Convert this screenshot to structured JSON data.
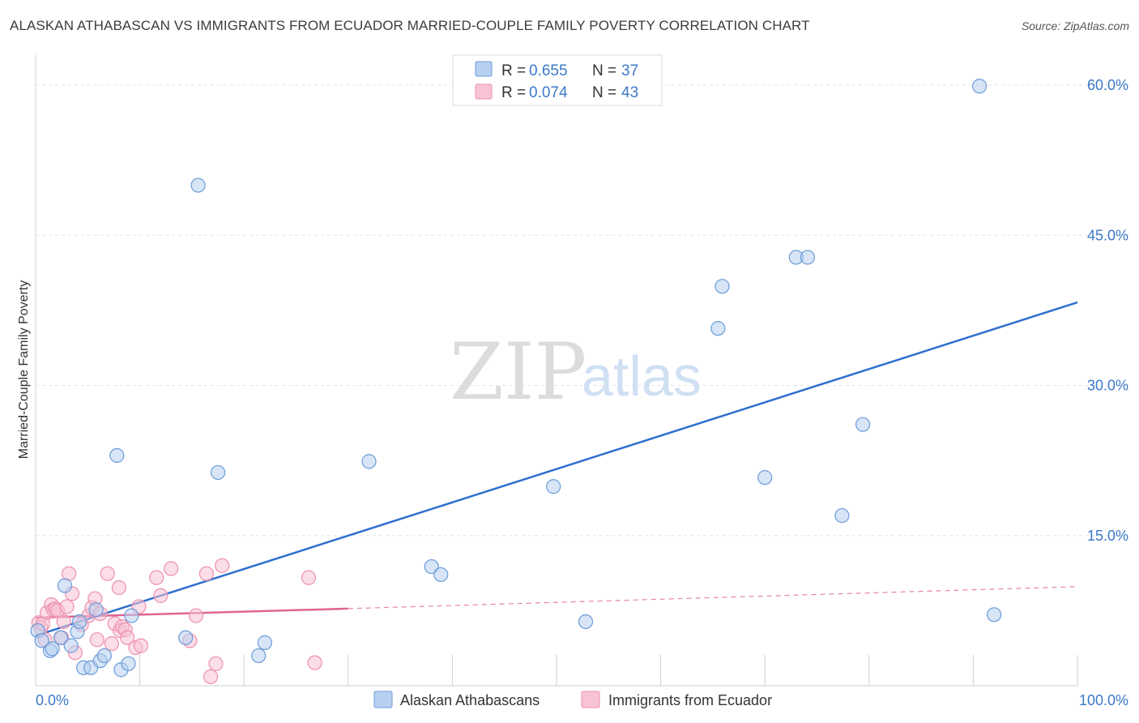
{
  "header": {
    "title": "ALASKAN ATHABASCAN VS IMMIGRANTS FROM ECUADOR MARRIED-COUPLE FAMILY POVERTY CORRELATION CHART",
    "source": "Source: ZipAtlas.com"
  },
  "watermark": {
    "zip": "ZIP",
    "atlas": "atlas"
  },
  "colors": {
    "series_a": "#6b9bd8",
    "series_a_fill": "#b7d0f1",
    "series_a_line": "#2f6fcf",
    "series_b": "#ee8fae",
    "series_b_fill": "#f8c3d3",
    "series_b_line": "#e06592",
    "axis_label": "#3b78c8",
    "grid": "#e3e3e3"
  },
  "legend": {
    "rows": [
      {
        "r_label": "R = ",
        "r_value": "0.655",
        "n_label": "N = ",
        "n_value": "37"
      },
      {
        "r_label": "R = ",
        "r_value": "0.074",
        "n_label": "N = ",
        "n_value": "43"
      }
    ]
  },
  "chart_data": {
    "type": "scatter",
    "title": "ALASKAN ATHABASCAN VS IMMIGRANTS FROM ECUADOR MARRIED-COUPLE FAMILY POVERTY CORRELATION CHART",
    "xlabel": "",
    "ylabel": "Married-Couple Family Poverty",
    "xlim": [
      0,
      100
    ],
    "ylim": [
      0,
      63
    ],
    "x_tick_labels": [
      {
        "value": 0,
        "label": "0.0%"
      },
      {
        "value": 100,
        "label": "100.0%"
      }
    ],
    "y_tick_labels": [
      {
        "value": 15,
        "label": "15.0%"
      },
      {
        "value": 30,
        "label": "30.0%"
      },
      {
        "value": 45,
        "label": "45.0%"
      },
      {
        "value": 60,
        "label": "60.0%"
      }
    ],
    "series": [
      {
        "name": "Alaskan Athabascans",
        "r": 0.655,
        "n": 37,
        "trend": {
          "x0": 0,
          "y0": 5.0,
          "x1": 100,
          "y1": 38.3
        },
        "points": [
          [
            0.2,
            5.5
          ],
          [
            0.6,
            4.5
          ],
          [
            1.4,
            3.5
          ],
          [
            1.6,
            3.7
          ],
          [
            2.4,
            4.8
          ],
          [
            2.8,
            10.0
          ],
          [
            3.4,
            4.0
          ],
          [
            4.0,
            5.4
          ],
          [
            4.2,
            6.4
          ],
          [
            4.6,
            1.8
          ],
          [
            5.3,
            1.8
          ],
          [
            5.8,
            7.6
          ],
          [
            6.2,
            2.5
          ],
          [
            6.6,
            3.0
          ],
          [
            7.8,
            23.0
          ],
          [
            8.2,
            1.6
          ],
          [
            8.9,
            2.2
          ],
          [
            9.2,
            7.0
          ],
          [
            14.4,
            4.8
          ],
          [
            15.6,
            50.0
          ],
          [
            17.5,
            21.3
          ],
          [
            21.4,
            3.0
          ],
          [
            22.0,
            4.3
          ],
          [
            32.0,
            22.4
          ],
          [
            38.0,
            11.9
          ],
          [
            38.9,
            11.1
          ],
          [
            49.7,
            19.9
          ],
          [
            52.8,
            6.4
          ],
          [
            65.9,
            39.9
          ],
          [
            65.5,
            35.7
          ],
          [
            70.0,
            20.8
          ],
          [
            73.0,
            42.8
          ],
          [
            74.1,
            42.8
          ],
          [
            77.4,
            17.0
          ],
          [
            79.4,
            26.1
          ],
          [
            90.6,
            59.9
          ],
          [
            92.0,
            7.1
          ]
        ]
      },
      {
        "name": "Immigrants from Ecuador",
        "r": 0.074,
        "n": 43,
        "trend_solid": {
          "x0": 0,
          "y0": 6.8,
          "x1": 30,
          "y1": 7.7
        },
        "trend_dashed": {
          "x0": 30,
          "y0": 7.7,
          "x1": 100,
          "y1": 9.9
        },
        "points": [
          [
            0.3,
            6.3
          ],
          [
            0.5,
            5.8
          ],
          [
            0.7,
            6.2
          ],
          [
            0.9,
            4.6
          ],
          [
            1.1,
            7.3
          ],
          [
            1.5,
            8.1
          ],
          [
            1.7,
            7.6
          ],
          [
            1.9,
            7.7
          ],
          [
            2.1,
            7.5
          ],
          [
            2.5,
            4.8
          ],
          [
            2.7,
            6.4
          ],
          [
            3.0,
            7.9
          ],
          [
            3.2,
            11.2
          ],
          [
            3.5,
            9.2
          ],
          [
            3.8,
            3.3
          ],
          [
            4.4,
            6.1
          ],
          [
            5.1,
            7.0
          ],
          [
            5.4,
            7.8
          ],
          [
            5.7,
            8.7
          ],
          [
            5.9,
            4.6
          ],
          [
            6.2,
            7.2
          ],
          [
            6.9,
            11.2
          ],
          [
            7.3,
            4.2
          ],
          [
            7.6,
            6.2
          ],
          [
            8.0,
            9.8
          ],
          [
            8.1,
            5.5
          ],
          [
            8.3,
            5.9
          ],
          [
            8.6,
            5.6
          ],
          [
            8.8,
            4.8
          ],
          [
            9.6,
            3.8
          ],
          [
            10.1,
            4.0
          ],
          [
            11.6,
            10.8
          ],
          [
            12.0,
            9.0
          ],
          [
            13.0,
            11.7
          ],
          [
            14.8,
            4.5
          ],
          [
            15.4,
            7.0
          ],
          [
            16.4,
            11.2
          ],
          [
            17.9,
            12.0
          ],
          [
            16.8,
            0.9
          ],
          [
            17.3,
            2.2
          ],
          [
            26.2,
            10.8
          ],
          [
            26.8,
            2.3
          ],
          [
            9.9,
            7.9
          ]
        ]
      }
    ],
    "legend_position": "top-center",
    "grid": true,
    "bottom_legend": [
      "Alaskan Athabascans",
      "Immigrants from Ecuador"
    ]
  }
}
